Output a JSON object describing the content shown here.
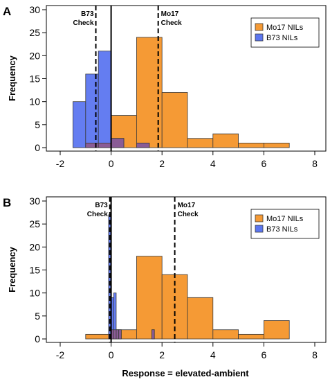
{
  "figure": {
    "shared_xlabel": "Response = elevated-ambient",
    "colors": {
      "mo17": "#F59A35",
      "b73": "#5C76F0",
      "overlap": "#8A5C96"
    }
  },
  "chart_data": [
    {
      "type": "bar",
      "panel_label": "A",
      "ylabel": "Frequency",
      "xlabel": "",
      "xlim": [
        -2,
        8
      ],
      "ylim": [
        0,
        30
      ],
      "xticks": [
        -2,
        0,
        2,
        4,
        6,
        8
      ],
      "yticks": [
        0,
        5,
        10,
        15,
        20,
        25,
        30
      ],
      "grid": false,
      "legend_placement": "top-right",
      "series": [
        {
          "name": "Mo17 NILs",
          "color": "#F59A35",
          "bins": [
            [
              -1,
              0,
              1
            ],
            [
              0,
              1,
              7
            ],
            [
              1,
              2,
              24
            ],
            [
              2,
              3,
              12
            ],
            [
              3,
              4,
              2
            ],
            [
              4,
              5,
              3
            ],
            [
              5,
              6,
              1
            ],
            [
              6,
              7,
              1
            ]
          ]
        },
        {
          "name": "B73 NILs",
          "color": "#5C76F0",
          "bins": [
            [
              -1.5,
              -1,
              10
            ],
            [
              -1,
              -0.5,
              16
            ],
            [
              -0.5,
              0,
              21
            ],
            [
              0,
              0.5,
              2
            ],
            [
              1,
              1.5,
              1
            ]
          ]
        }
      ],
      "check_lines": [
        {
          "label_line1": "B73",
          "label_line2": "Check",
          "x": -0.6
        },
        {
          "label_line1": "Mo17",
          "label_line2": "Check",
          "x": 1.85
        }
      ],
      "zero_line": 0
    },
    {
      "type": "bar",
      "panel_label": "B",
      "ylabel": "Frequency",
      "xlabel": "Response = elevated-ambient",
      "xlim": [
        -2,
        8
      ],
      "ylim": [
        0,
        30
      ],
      "xticks": [
        -2,
        0,
        2,
        4,
        6,
        8
      ],
      "yticks": [
        0,
        5,
        10,
        15,
        20,
        25,
        30
      ],
      "grid": false,
      "legend_placement": "top-right",
      "series": [
        {
          "name": "Mo17 NILs",
          "color": "#F59A35",
          "bins": [
            [
              -1,
              0,
              1
            ],
            [
              0,
              1,
              2
            ],
            [
              1,
              2,
              18
            ],
            [
              2,
              3,
              14
            ],
            [
              3,
              4,
              9
            ],
            [
              4,
              5,
              2
            ],
            [
              5,
              6,
              1
            ],
            [
              6,
              7,
              4
            ]
          ]
        },
        {
          "name": "B73 NILs",
          "color": "#5C76F0",
          "bins": [
            [
              -0.1,
              0,
              27
            ],
            [
              0,
              0.1,
              9
            ],
            [
              0.1,
              0.2,
              10
            ],
            [
              0.2,
              0.3,
              2
            ],
            [
              0.3,
              0.4,
              2
            ],
            [
              1.6,
              1.7,
              2
            ]
          ]
        }
      ],
      "check_lines": [
        {
          "label_line1": "B73",
          "label_line2": "Check",
          "x": -0.05
        },
        {
          "label_line1": "Mo17",
          "label_line2": "Check",
          "x": 2.5
        }
      ],
      "zero_line": 0
    }
  ]
}
